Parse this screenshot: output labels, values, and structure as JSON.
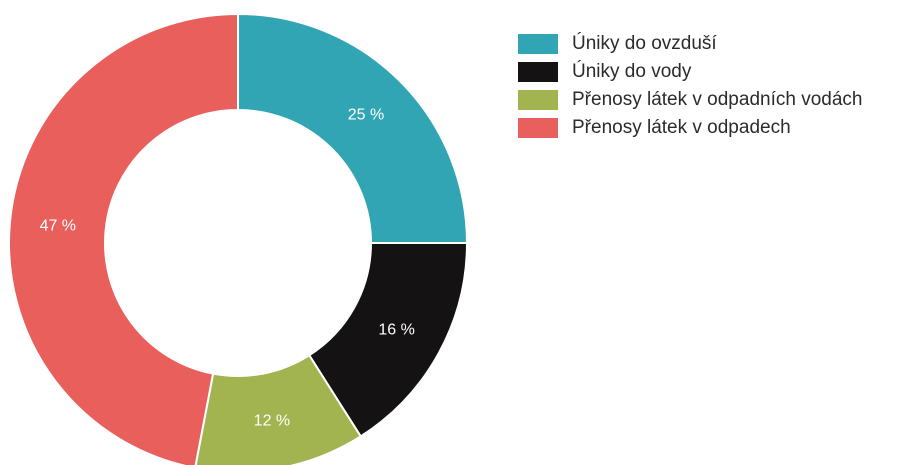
{
  "chart_data": {
    "type": "pie",
    "categories": [
      "Úniky do ovzduší",
      "Úniky do vody",
      "Přenosy látek v odpadních vodách",
      "Přenosy látek v odpadech"
    ],
    "values": [
      25,
      16,
      12,
      47
    ],
    "labels": [
      "25 %",
      "16 %",
      "12 %",
      "47 %"
    ],
    "colors": [
      "#32a5b4",
      "#141213",
      "#a1b44f",
      "#e85f5c"
    ],
    "legend_position": "right",
    "donut": true
  }
}
